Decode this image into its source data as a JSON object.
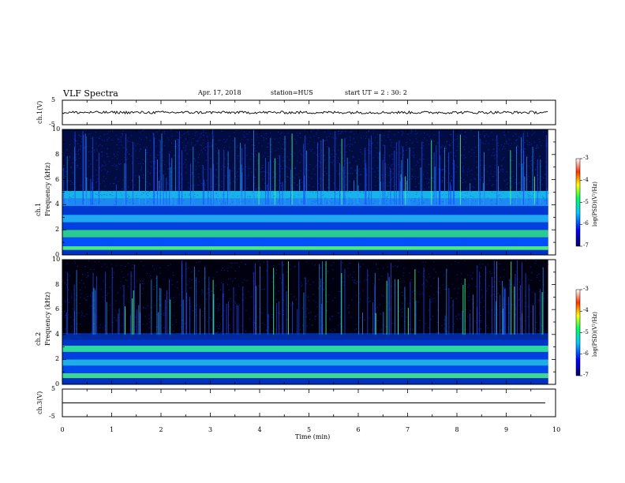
{
  "header": {
    "title": "VLF Spectra",
    "date": "Apr. 17, 2018",
    "station": "station=HUS",
    "start": "start UT = 2 : 30: 2"
  },
  "chart_data": {
    "type": "heatmap",
    "title": "VLF Spectra",
    "xlabel": "Time (min)",
    "xlim": [
      0,
      10
    ],
    "x_ticks": [
      "0",
      "1",
      "2",
      "3",
      "4",
      "5",
      "6",
      "7",
      "8",
      "9",
      "10"
    ],
    "panels": [
      {
        "name": "ch.1(V)",
        "type": "line",
        "ylim": [
          -5,
          5
        ],
        "y_ticks": [
          "5",
          "-5"
        ],
        "level": 0
      },
      {
        "name": "ch.1",
        "ylabel": "Frequency (kHz)",
        "type": "spectrogram",
        "ylim": [
          0,
          10
        ],
        "y_ticks": [
          "0",
          "2",
          "4",
          "6",
          "8",
          "10"
        ],
        "colorbar": {
          "label": "log(PSD)(V²/Hz)",
          "range": [
            -7,
            -3
          ],
          "ticks": [
            "-3",
            "-4",
            "-5",
            "-6",
            "-7"
          ]
        }
      },
      {
        "name": "ch.2",
        "ylabel": "Frequency (kHz)",
        "type": "spectrogram",
        "ylim": [
          0,
          10
        ],
        "y_ticks": [
          "0",
          "2",
          "4",
          "6",
          "8",
          "10"
        ],
        "colorbar": {
          "label": "log(PSD)(V²/Hz)",
          "range": [
            -7,
            -3
          ],
          "ticks": [
            "-3",
            "-4",
            "-5",
            "-6",
            "-7"
          ]
        }
      },
      {
        "name": "ch.3(V)",
        "type": "line",
        "ylim": [
          -5,
          5
        ],
        "y_ticks": [
          "5",
          "-5"
        ],
        "level": 0
      }
    ],
    "data_end_min": 9.85,
    "colors": {
      "background": "#000010",
      "low": "#0000a0",
      "mid": "#00a0ff",
      "high": "#40ff80"
    }
  }
}
